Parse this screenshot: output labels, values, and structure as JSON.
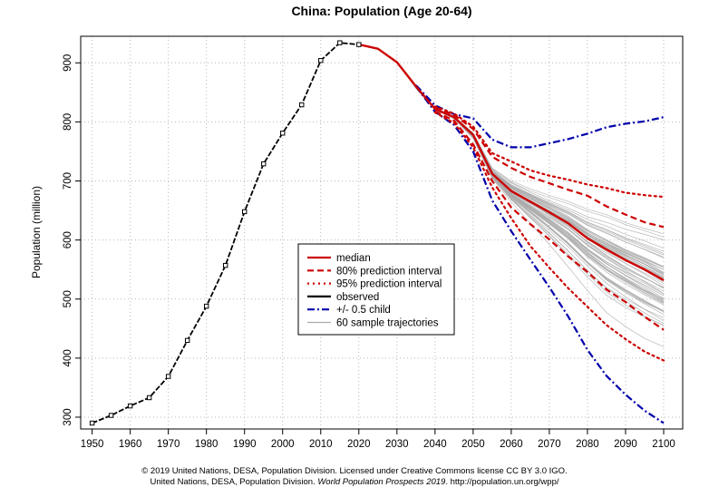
{
  "chart_data": {
    "type": "line",
    "title": "China: Population (Age 20-64)",
    "xlabel": "",
    "ylabel": "Population (million)",
    "xlim": [
      1947,
      2105
    ],
    "ylim": [
      280,
      945
    ],
    "x_ticks": [
      1950,
      1960,
      1970,
      1980,
      1990,
      2000,
      2010,
      2020,
      2030,
      2040,
      2050,
      2060,
      2070,
      2080,
      2090,
      2100
    ],
    "y_ticks": [
      300,
      400,
      500,
      600,
      700,
      800,
      900
    ],
    "grid": true,
    "legend_position": "center",
    "series": [
      {
        "name": "observed",
        "color": "#000000",
        "style": "solid-with-square-markers",
        "x": [
          1950,
          1955,
          1960,
          1965,
          1970,
          1975,
          1980,
          1985,
          1990,
          1995,
          2000,
          2005,
          2010,
          2015,
          2020
        ],
        "y": [
          290,
          303,
          319,
          333,
          369,
          430,
          488,
          557,
          648,
          729,
          781,
          829,
          904,
          934,
          931
        ]
      },
      {
        "name": "median",
        "color": "#cc0000",
        "style": "solid",
        "x": [
          2020,
          2025,
          2030,
          2035,
          2040,
          2045,
          2050,
          2055,
          2060,
          2065,
          2070,
          2075,
          2080,
          2085,
          2090,
          2095,
          2100
        ],
        "y": [
          931,
          924,
          901,
          860,
          822,
          808,
          778,
          712,
          683,
          665,
          647,
          628,
          603,
          584,
          566,
          550,
          532
        ]
      },
      {
        "name": "80% prediction interval",
        "color": "#cc0000",
        "style": "dashed",
        "upper": {
          "x": [
            2040,
            2045,
            2050,
            2055,
            2060,
            2065,
            2070,
            2075,
            2080,
            2085,
            2090,
            2095,
            2100
          ],
          "y": [
            825,
            812,
            788,
            741,
            722,
            707,
            696,
            685,
            675,
            657,
            643,
            630,
            622
          ]
        },
        "lower": {
          "x": [
            2040,
            2045,
            2050,
            2055,
            2060,
            2065,
            2070,
            2075,
            2080,
            2085,
            2090,
            2095,
            2100
          ],
          "y": [
            818,
            802,
            762,
            700,
            655,
            627,
            601,
            572,
            546,
            516,
            495,
            470,
            448
          ]
        }
      },
      {
        "name": "95% prediction interval",
        "color": "#cc0000",
        "style": "dotted",
        "upper": {
          "x": [
            2040,
            2045,
            2050,
            2055,
            2060,
            2065,
            2070,
            2075,
            2080,
            2085,
            2090,
            2095,
            2100
          ],
          "y": [
            826,
            814,
            792,
            747,
            733,
            718,
            709,
            702,
            694,
            688,
            680,
            676,
            673
          ]
        },
        "lower": {
          "x": [
            2040,
            2045,
            2050,
            2055,
            2060,
            2065,
            2070,
            2075,
            2080,
            2085,
            2090,
            2095,
            2100
          ],
          "y": [
            816,
            798,
            757,
            689,
            637,
            590,
            553,
            518,
            487,
            456,
            432,
            411,
            396
          ]
        }
      },
      {
        "name": "+/- 0.5 child",
        "color": "#0000aa",
        "style": "dash-dot",
        "upper": {
          "x": [
            2035,
            2040,
            2045,
            2050,
            2055,
            2060,
            2065,
            2070,
            2075,
            2080,
            2085,
            2090,
            2095,
            2100
          ],
          "y": [
            862,
            828,
            813,
            806,
            770,
            757,
            757,
            764,
            771,
            780,
            791,
            797,
            801,
            808
          ]
        },
        "lower": {
          "x": [
            2035,
            2040,
            2045,
            2050,
            2055,
            2060,
            2065,
            2070,
            2075,
            2080,
            2085,
            2090,
            2095,
            2100
          ],
          "y": [
            860,
            817,
            795,
            750,
            667,
            615,
            567,
            520,
            470,
            414,
            370,
            338,
            311,
            290
          ]
        }
      },
      {
        "name": "60 sample trajectories",
        "color": "#aaaaaa",
        "style": "thin",
        "count": 60,
        "x_start": 2020,
        "x_end": 2100
      }
    ]
  },
  "legend": {
    "items": [
      {
        "label": "median",
        "key": "median-line",
        "color": "#cc0000",
        "dash": ""
      },
      {
        "label": "80% prediction interval",
        "key": "pi80-line",
        "color": "#cc0000",
        "dash": "7 4"
      },
      {
        "label": "95% prediction interval",
        "key": "pi95-line",
        "color": "#cc0000",
        "dash": "2 4"
      },
      {
        "label": "observed",
        "key": "observed-line",
        "color": "#000000",
        "dash": ""
      },
      {
        "label": "+/- 0.5 child",
        "key": "half-child-line",
        "color": "#0000aa",
        "dash": "8 3 2 3"
      },
      {
        "label": "60 sample trajectories",
        "key": "trajectories-line",
        "color": "#aaaaaa",
        "dash": ""
      }
    ]
  },
  "footer": {
    "line1": "© 2019 United Nations, DESA, Population Division. Licensed under Creative Commons license CC BY 3.0 IGO.",
    "line2_pre": "United Nations, DESA, Population Division. ",
    "line2_em": "World Population Prospects 2019",
    "line2_post": ". http://population.un.org/wpp/"
  }
}
